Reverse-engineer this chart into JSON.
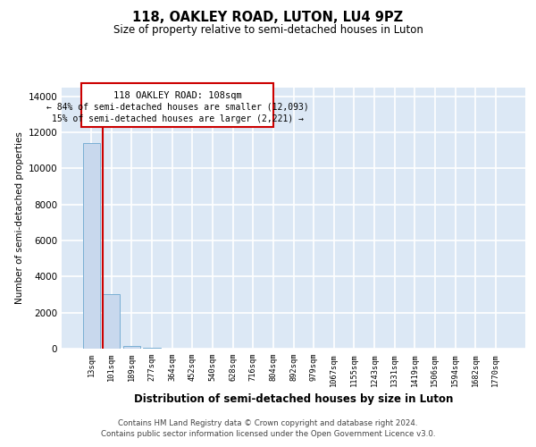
{
  "title": "118, OAKLEY ROAD, LUTON, LU4 9PZ",
  "subtitle": "Size of property relative to semi-detached houses in Luton",
  "xlabel": "Distribution of semi-detached houses by size in Luton",
  "ylabel": "Number of semi-detached properties",
  "annotation_title": "118 OAKLEY ROAD: 108sqm",
  "annotation_line2": "← 84% of semi-detached houses are smaller (12,093)",
  "annotation_line3": "15% of semi-detached houses are larger (2,221) →",
  "footer_line1": "Contains HM Land Registry data © Crown copyright and database right 2024.",
  "footer_line2": "Contains public sector information licensed under the Open Government Licence v3.0.",
  "bar_color": "#c8d8ed",
  "bar_edge_color": "#7aafd4",
  "property_line_color": "#cc0000",
  "annotation_box_color": "#cc0000",
  "background_color": "#dce8f5",
  "categories": [
    "13sqm",
    "101sqm",
    "189sqm",
    "277sqm",
    "364sqm",
    "452sqm",
    "540sqm",
    "628sqm",
    "716sqm",
    "804sqm",
    "892sqm",
    "979sqm",
    "1067sqm",
    "1155sqm",
    "1243sqm",
    "1331sqm",
    "1419sqm",
    "1506sqm",
    "1594sqm",
    "1682sqm",
    "1770sqm"
  ],
  "values": [
    11400,
    3000,
    150,
    30,
    10,
    5,
    3,
    2,
    2,
    2,
    1,
    1,
    1,
    1,
    1,
    1,
    1,
    1,
    1,
    1,
    1
  ],
  "property_bin_index": 1,
  "ylim": [
    0,
    14500
  ],
  "yticks": [
    0,
    2000,
    4000,
    6000,
    8000,
    10000,
    12000,
    14000
  ]
}
